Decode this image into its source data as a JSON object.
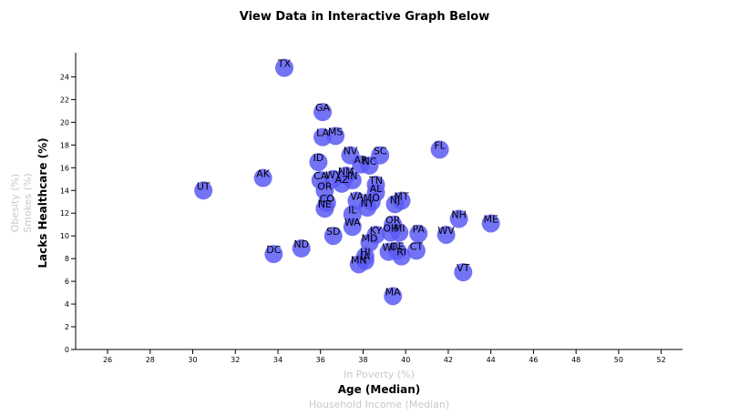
{
  "chart_data": {
    "type": "scatter",
    "title": "View Data in Interactive Graph Below",
    "x_axis": {
      "active_label": "Age (Median)",
      "inactive_labels": [
        "In Poverty (%)",
        "Household Income (Median)"
      ],
      "range": [
        24.5,
        53
      ],
      "ticks": [
        26,
        28,
        30,
        32,
        34,
        36,
        38,
        40,
        42,
        44,
        46,
        48,
        50,
        52
      ]
    },
    "y_axis": {
      "active_label": "Lacks Healthcare (%)",
      "inactive_labels": [
        "Smokes (%)",
        "Obesity (%)"
      ],
      "range": [
        0,
        25
      ],
      "ticks": [
        0,
        2,
        4,
        6,
        8,
        10,
        12,
        14,
        16,
        18,
        20,
        22,
        24
      ]
    },
    "points": [
      {
        "label": "TX",
        "x": 34.3,
        "y": 24.8
      },
      {
        "label": "GA",
        "x": 36.1,
        "y": 20.9
      },
      {
        "label": "LA",
        "x": 36.1,
        "y": 18.7
      },
      {
        "label": "MS",
        "x": 36.7,
        "y": 18.8
      },
      {
        "label": "FL",
        "x": 41.6,
        "y": 17.6
      },
      {
        "label": "NV",
        "x": 37.4,
        "y": 17.1
      },
      {
        "label": "SC",
        "x": 38.8,
        "y": 17.1
      },
      {
        "label": "AR",
        "x": 37.9,
        "y": 16.3
      },
      {
        "label": "NC",
        "x": 38.3,
        "y": 16.2
      },
      {
        "label": "ID",
        "x": 35.9,
        "y": 16.5
      },
      {
        "label": "NM",
        "x": 37.2,
        "y": 15.3
      },
      {
        "label": "AK",
        "x": 33.3,
        "y": 15.1
      },
      {
        "label": "CA",
        "x": 36.0,
        "y": 14.9
      },
      {
        "label": "WY",
        "x": 36.6,
        "y": 15.0
      },
      {
        "label": "AZ",
        "x": 37.0,
        "y": 14.6
      },
      {
        "label": "IN",
        "x": 37.5,
        "y": 14.9
      },
      {
        "label": "OR",
        "x": 36.2,
        "y": 14.0
      },
      {
        "label": "TN",
        "x": 38.6,
        "y": 14.5
      },
      {
        "label": "AL",
        "x": 38.6,
        "y": 13.8
      },
      {
        "label": "UT",
        "x": 30.5,
        "y": 14.0
      },
      {
        "label": "VA",
        "x": 37.7,
        "y": 13.1
      },
      {
        "label": "MO",
        "x": 38.4,
        "y": 13.0
      },
      {
        "label": "MT",
        "x": 39.8,
        "y": 13.1
      },
      {
        "label": "NJ",
        "x": 39.5,
        "y": 12.8
      },
      {
        "label": "CO",
        "x": 36.3,
        "y": 12.9
      },
      {
        "label": "NE",
        "x": 36.2,
        "y": 12.4
      },
      {
        "label": "NY",
        "x": 38.2,
        "y": 12.5
      },
      {
        "label": "IL",
        "x": 37.5,
        "y": 11.9
      },
      {
        "label": "NH",
        "x": 42.5,
        "y": 11.5
      },
      {
        "label": "ME",
        "x": 44.0,
        "y": 11.1
      },
      {
        "label": "WA",
        "x": 37.5,
        "y": 10.8
      },
      {
        "label": "OR",
        "x": 39.4,
        "y": 11.0
      },
      {
        "label": "OH",
        "x": 39.3,
        "y": 10.3
      },
      {
        "label": "MI",
        "x": 39.7,
        "y": 10.3
      },
      {
        "label": "PA",
        "x": 40.6,
        "y": 10.2
      },
      {
        "label": "WV",
        "x": 41.9,
        "y": 10.1
      },
      {
        "label": "SD",
        "x": 36.6,
        "y": 10.0
      },
      {
        "label": "KY",
        "x": 38.6,
        "y": 10.1
      },
      {
        "label": "MD",
        "x": 38.3,
        "y": 9.4
      },
      {
        "label": "ND",
        "x": 35.1,
        "y": 8.9
      },
      {
        "label": "DC",
        "x": 33.8,
        "y": 8.4
      },
      {
        "label": "WI",
        "x": 39.2,
        "y": 8.6
      },
      {
        "label": "DE",
        "x": 39.6,
        "y": 8.7
      },
      {
        "label": "CT",
        "x": 40.5,
        "y": 8.7
      },
      {
        "label": "RI",
        "x": 39.8,
        "y": 8.2
      },
      {
        "label": "HI",
        "x": 38.1,
        "y": 8.2
      },
      {
        "label": "MN",
        "x": 37.8,
        "y": 7.5
      },
      {
        "label": "IA",
        "x": 38.1,
        "y": 7.8
      },
      {
        "label": "VT",
        "x": 42.7,
        "y": 6.8
      },
      {
        "label": "MA",
        "x": 39.4,
        "y": 4.7
      }
    ]
  }
}
